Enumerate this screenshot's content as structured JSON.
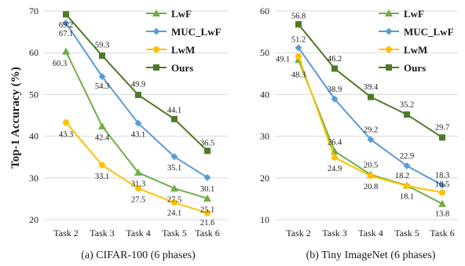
{
  "ylabel": "Top-1 Accuracy (%)",
  "chart_data": [
    {
      "type": "line",
      "caption": "(a) CIFAR-100 (6  phases)",
      "categories": [
        "Task 2",
        "Task 3",
        "Task 4",
        "Task 5",
        "Task 6"
      ],
      "ylim": [
        20,
        70
      ],
      "yticks": [
        20,
        30,
        40,
        50,
        60,
        70
      ],
      "grid": "horizontal",
      "legend": "top-right",
      "series": [
        {
          "name": "LwF",
          "color": "#70ad47",
          "marker": "triangle",
          "values": [
            60.3,
            42.4,
            31.3,
            27.5,
            25.1
          ]
        },
        {
          "name": "MUC_LwF",
          "color": "#5b9bd5",
          "marker": "diamond",
          "values": [
            67.1,
            54.3,
            43.1,
            35.1,
            30.1
          ]
        },
        {
          "name": "LwM",
          "color": "#ffc000",
          "marker": "circle",
          "values": [
            43.3,
            33.1,
            27.5,
            24.1,
            21.6
          ]
        },
        {
          "name": "Ours",
          "color": "#4e7a27",
          "marker": "square",
          "values": [
            69.2,
            59.3,
            49.9,
            44.1,
            36.5
          ]
        }
      ]
    },
    {
      "type": "line",
      "caption": "(b) Tiny ImageNet (6  phases)",
      "categories": [
        "Task 2",
        "Task 3",
        "Task 4",
        "Task 5",
        "Task 6"
      ],
      "ylim": [
        10,
        60
      ],
      "yticks": [
        10,
        20,
        30,
        40,
        50,
        60
      ],
      "grid": "horizontal",
      "legend": "top-right",
      "series": [
        {
          "name": "LwF",
          "color": "#70ad47",
          "marker": "triangle",
          "values": [
            48.3,
            26.4,
            20.8,
            18.2,
            13.8
          ]
        },
        {
          "name": "MUC_LwF",
          "color": "#5b9bd5",
          "marker": "diamond",
          "values": [
            51.2,
            38.9,
            29.2,
            22.9,
            18.3
          ]
        },
        {
          "name": "LwM",
          "color": "#ffc000",
          "marker": "circle",
          "values": [
            49.1,
            24.9,
            20.5,
            18.1,
            16.5
          ]
        },
        {
          "name": "Ours",
          "color": "#4e7a27",
          "marker": "square",
          "values": [
            56.8,
            46.2,
            39.4,
            35.2,
            29.7
          ]
        }
      ]
    }
  ]
}
